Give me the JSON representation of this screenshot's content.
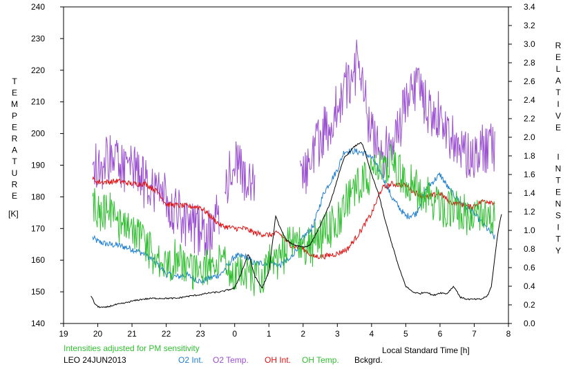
{
  "chart_data": {
    "type": "line",
    "xlabel": "Local Standard Time [h]",
    "ylabel_left": "TEMPERATURE",
    "ylabel_left_unit": "[K]",
    "ylabel_right": "RELATIVE INTENSITY",
    "xlim": [
      19,
      8
    ],
    "x_ticks": [
      "19",
      "20",
      "21",
      "22",
      "23",
      "0",
      "1",
      "2",
      "3",
      "4",
      "5",
      "6",
      "7",
      "8"
    ],
    "ylim_left": [
      140,
      240
    ],
    "y_ticks_left": [
      "140",
      "150",
      "160",
      "170",
      "180",
      "190",
      "200",
      "210",
      "220",
      "230",
      "240"
    ],
    "ylim_right": [
      0.0,
      3.4
    ],
    "y_ticks_right": [
      "0.0",
      "0.2",
      "0.4",
      "0.6",
      "0.8",
      "1.0",
      "1.2",
      "1.4",
      "1.6",
      "1.8",
      "2.0",
      "2.2",
      "2.4",
      "2.6",
      "2.8",
      "3.0",
      "3.2",
      "3.4"
    ],
    "note": "Intensities adjusted for PM sensitivity",
    "station_date": "LEO 24JUN2013",
    "series": [
      {
        "name": "O2 Int.",
        "axis": "right",
        "color": "#1f7fd0",
        "x": [
          19.85,
          20.0,
          20.3,
          20.6,
          21.0,
          21.4,
          21.8,
          22.0,
          22.3,
          22.6,
          23.0,
          23.3,
          23.6,
          24.0,
          24.3,
          24.6,
          25.0,
          25.3,
          25.6,
          26.0,
          26.3,
          26.6,
          27.0,
          27.2,
          27.5,
          27.8,
          28.0,
          28.3,
          28.6,
          29.0,
          29.3,
          29.6,
          30.0,
          30.3,
          30.6,
          30.9,
          31.3,
          31.6
        ],
        "y": [
          0.92,
          0.88,
          0.85,
          0.84,
          0.8,
          0.74,
          0.62,
          0.53,
          0.5,
          0.52,
          0.45,
          0.49,
          0.53,
          0.72,
          0.72,
          0.64,
          0.66,
          0.62,
          0.68,
          0.92,
          1.05,
          1.4,
          1.65,
          1.85,
          1.85,
          1.83,
          1.78,
          1.6,
          1.35,
          1.15,
          1.18,
          1.45,
          1.6,
          1.42,
          1.3,
          1.22,
          1.05,
          0.92
        ]
      },
      {
        "name": "O2 Temp.",
        "axis": "left",
        "color": "#9a4fd0",
        "x": [
          19.85,
          20.0,
          20.3,
          20.6,
          21.0,
          21.4,
          21.8,
          22.0,
          22.3,
          22.6,
          23.0,
          23.3,
          23.6,
          24.0,
          24.3,
          24.6,
          26.0,
          26.3,
          26.6,
          27.0,
          27.3,
          27.6,
          28.0,
          28.3,
          28.6,
          29.0,
          29.3,
          29.6,
          30.0,
          30.3,
          30.6,
          30.9,
          31.3,
          31.6
        ],
        "y": [
          192,
          188,
          192,
          190,
          188,
          185,
          183,
          180,
          176,
          172,
          170,
          168,
          176,
          192,
          185,
          182,
          185,
          195,
          200,
          208,
          215,
          222,
          200,
          193,
          196,
          210,
          215,
          208,
          205,
          200,
          196,
          192,
          195,
          197
        ]
      },
      {
        "name": "OH Int.",
        "axis": "right",
        "color": "#e01010",
        "x": [
          19.85,
          20.0,
          20.3,
          20.6,
          21.0,
          21.4,
          21.8,
          22.0,
          22.3,
          22.6,
          23.0,
          23.3,
          23.6,
          24.0,
          24.3,
          24.6,
          25.0,
          25.3,
          25.6,
          26.0,
          26.3,
          26.6,
          27.0,
          27.3,
          27.6,
          28.0,
          28.3,
          28.6,
          29.0,
          29.3,
          29.6,
          30.0,
          30.3,
          30.6,
          30.9,
          31.3,
          31.6
        ],
        "y": [
          1.55,
          1.52,
          1.52,
          1.53,
          1.5,
          1.5,
          1.4,
          1.28,
          1.27,
          1.26,
          1.25,
          1.15,
          1.05,
          1.02,
          1.02,
          0.97,
          0.95,
          0.97,
          0.85,
          0.8,
          0.72,
          0.72,
          0.75,
          0.8,
          0.95,
          1.18,
          1.45,
          1.5,
          1.48,
          1.4,
          1.35,
          1.4,
          1.3,
          1.28,
          1.25,
          1.32,
          1.3
        ]
      },
      {
        "name": "OH Temp.",
        "axis": "left",
        "color": "#2fbf2f",
        "x": [
          19.85,
          20.0,
          20.3,
          20.6,
          21.0,
          21.4,
          21.8,
          22.0,
          22.3,
          22.6,
          23.0,
          23.3,
          23.6,
          24.0,
          24.3,
          24.6,
          25.0,
          25.3,
          25.6,
          26.0,
          26.3,
          26.6,
          27.0,
          27.3,
          27.6,
          28.0,
          28.3,
          28.6,
          29.0,
          29.3,
          29.6,
          30.0,
          30.3,
          30.6,
          30.9,
          31.3,
          31.6
        ],
        "y": [
          178,
          174,
          176,
          172,
          170,
          165,
          160,
          158,
          160,
          157,
          156,
          158,
          160,
          156,
          158,
          154,
          158,
          160,
          165,
          163,
          165,
          168,
          172,
          178,
          184,
          186,
          190,
          192,
          186,
          182,
          180,
          178,
          176,
          175,
          173,
          172,
          172
        ]
      },
      {
        "name": "Bckgrd.",
        "axis": "right",
        "color": "#000000",
        "x": [
          19.8,
          19.9,
          20.0,
          20.2,
          20.5,
          20.8,
          21.0,
          21.3,
          21.6,
          22.0,
          22.3,
          22.6,
          23.0,
          23.3,
          23.6,
          24.0,
          24.2,
          24.4,
          24.5,
          24.6,
          24.8,
          25.0,
          25.2,
          25.3,
          25.5,
          25.7,
          26.0,
          26.2,
          26.5,
          26.8,
          27.0,
          27.2,
          27.5,
          27.7,
          27.8,
          28.0,
          28.2,
          28.4,
          28.6,
          28.8,
          29.0,
          29.2,
          29.4,
          29.6,
          29.8,
          30.0,
          30.2,
          30.4,
          30.6,
          30.8,
          31.0,
          31.2,
          31.4,
          31.5,
          31.6,
          31.7,
          31.8
        ],
        "y": [
          0.3,
          0.22,
          0.18,
          0.17,
          0.2,
          0.22,
          0.24,
          0.26,
          0.27,
          0.27,
          0.27,
          0.29,
          0.31,
          0.33,
          0.34,
          0.38,
          0.55,
          0.75,
          0.62,
          0.5,
          0.38,
          0.55,
          1.16,
          1.05,
          0.9,
          0.85,
          0.82,
          0.84,
          1.05,
          1.3,
          1.55,
          1.78,
          1.9,
          1.95,
          1.85,
          1.6,
          1.4,
          1.1,
          0.85,
          0.6,
          0.4,
          0.34,
          0.32,
          0.34,
          0.3,
          0.33,
          0.32,
          0.4,
          0.28,
          0.26,
          0.26,
          0.26,
          0.3,
          0.4,
          0.7,
          1.0,
          1.18
        ]
      }
    ]
  }
}
